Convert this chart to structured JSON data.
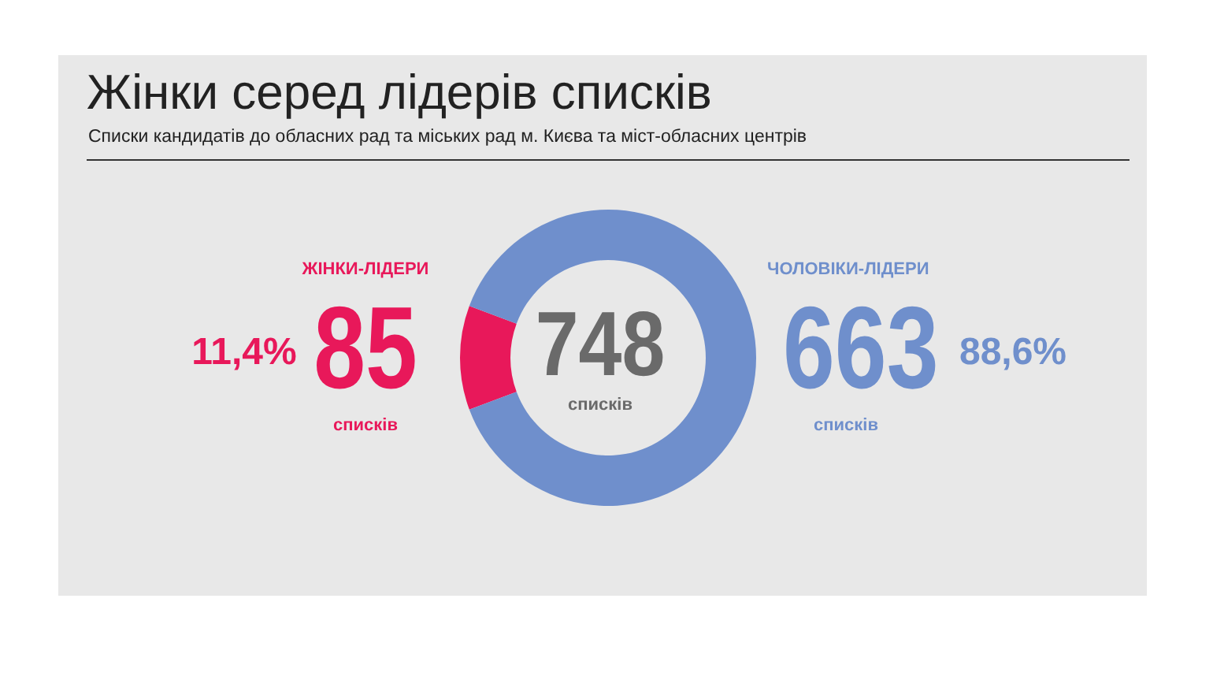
{
  "chart_data": {
    "type": "donut",
    "title": "Жінки серед лідерів списків",
    "subtitle": "Списки кандидатів до обласних рад та міських рад м. Києва та міст-обласних центрів",
    "categories": [
      "ЖІНКИ-ЛІДЕРИ",
      "ЧОЛОВІКИ-ЛІДЕРИ"
    ],
    "values": [
      85,
      663
    ],
    "colors": [
      "#e8185a",
      "#6f8fcc"
    ],
    "data_labels": true,
    "annotations": [
      "11,4%",
      "88,6%",
      "748",
      "списків",
      "списків",
      "списків"
    ]
  }
}
